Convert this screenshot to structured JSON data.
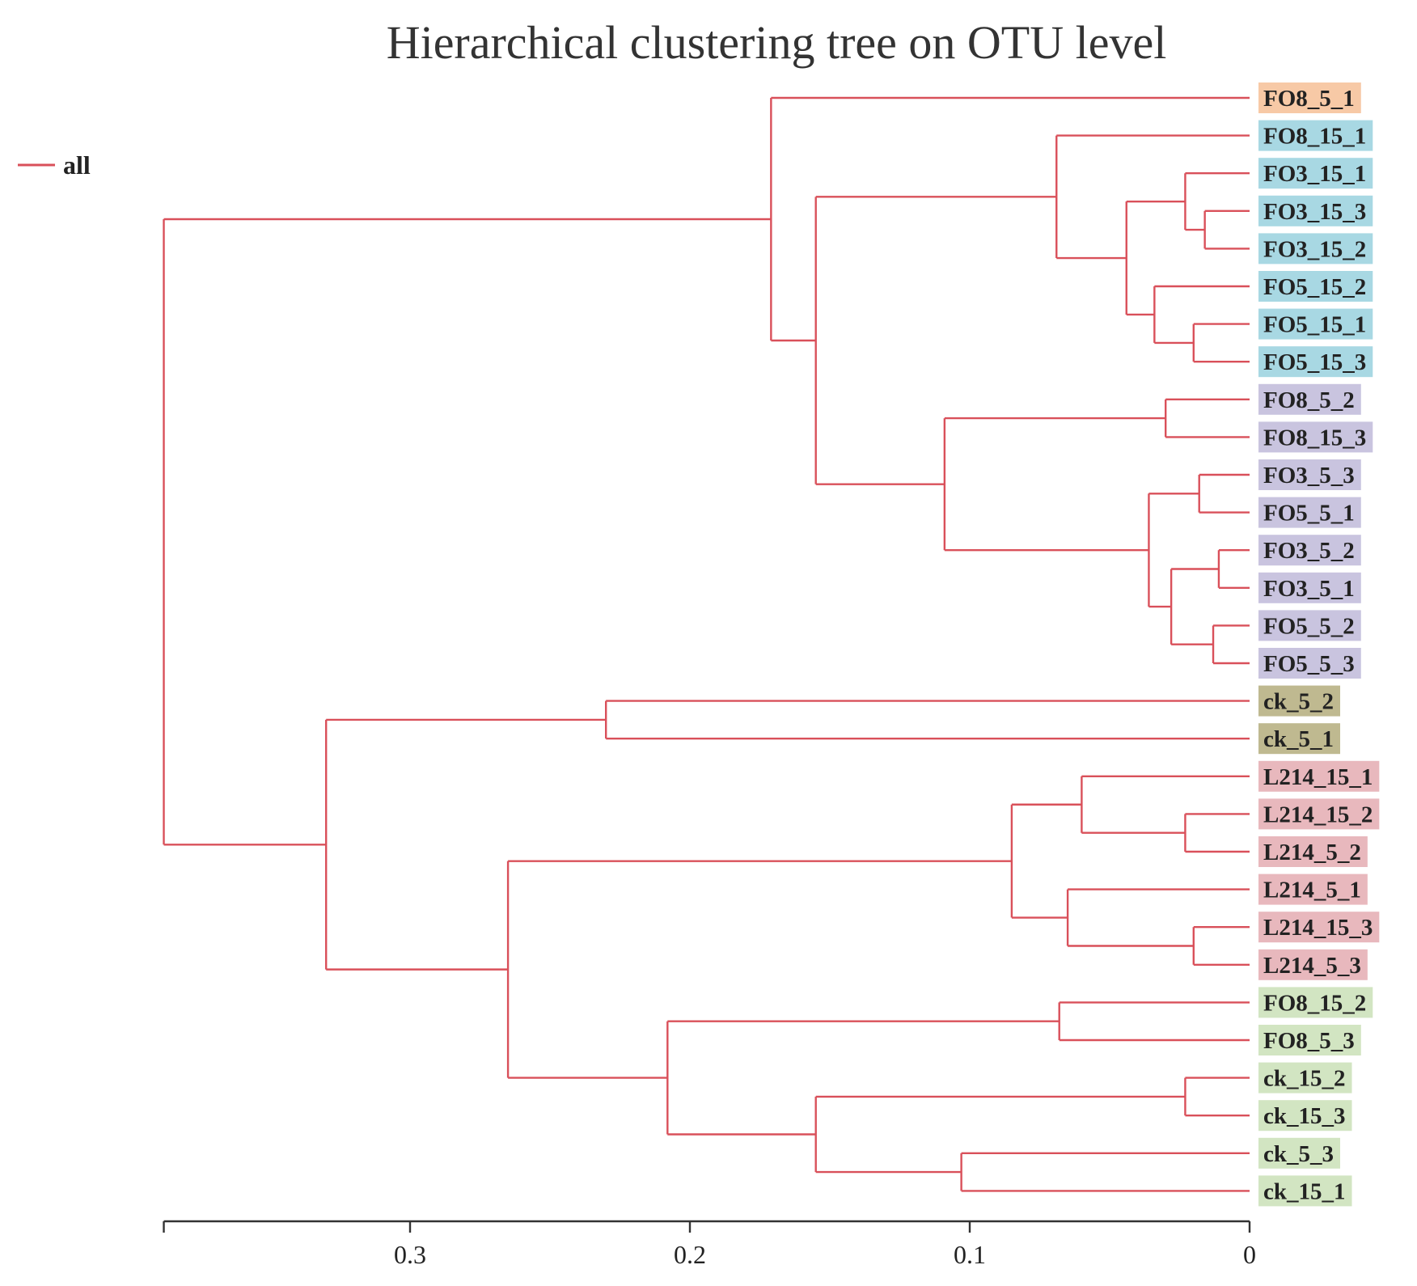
{
  "chart_data": {
    "type": "dendrogram",
    "title": "Hierarchical clustering tree on OTU level",
    "legend": {
      "label": "all",
      "color": "#d9505a",
      "placement": "top-left"
    },
    "xaxis": {
      "ticks": [
        0.3,
        0.2,
        0.1,
        0
      ],
      "tick_labels": [
        "0.3",
        "0.2",
        "0.1",
        "0"
      ],
      "range": [
        0.388,
        0
      ],
      "reversed": true
    },
    "leaves": [
      {
        "name": "FO8_5_1",
        "color": "#f7c9a6"
      },
      {
        "name": "FO8_15_1",
        "color": "#a8d8e3"
      },
      {
        "name": "FO3_15_1",
        "color": "#a8d8e3"
      },
      {
        "name": "FO3_15_3",
        "color": "#a8d8e3"
      },
      {
        "name": "FO3_15_2",
        "color": "#a8d8e3"
      },
      {
        "name": "FO5_15_2",
        "color": "#a8d8e3"
      },
      {
        "name": "FO5_15_1",
        "color": "#a8d8e3"
      },
      {
        "name": "FO5_15_3",
        "color": "#a8d8e3"
      },
      {
        "name": "FO8_5_2",
        "color": "#c9c4df"
      },
      {
        "name": "FO8_15_3",
        "color": "#c9c4df"
      },
      {
        "name": "FO3_5_3",
        "color": "#c9c4df"
      },
      {
        "name": "FO5_5_1",
        "color": "#c9c4df"
      },
      {
        "name": "FO3_5_2",
        "color": "#c9c4df"
      },
      {
        "name": "FO3_5_1",
        "color": "#c9c4df"
      },
      {
        "name": "FO5_5_2",
        "color": "#c9c4df"
      },
      {
        "name": "FO5_5_3",
        "color": "#c9c4df"
      },
      {
        "name": "ck_5_2",
        "color": "#bfb990"
      },
      {
        "name": "ck_5_1",
        "color": "#bfb990"
      },
      {
        "name": "L214_15_1",
        "color": "#e8b8bd"
      },
      {
        "name": "L214_15_2",
        "color": "#e8b8bd"
      },
      {
        "name": "L214_5_2",
        "color": "#e8b8bd"
      },
      {
        "name": "L214_5_1",
        "color": "#e8b8bd"
      },
      {
        "name": "L214_15_3",
        "color": "#e8b8bd"
      },
      {
        "name": "L214_5_3",
        "color": "#e8b8bd"
      },
      {
        "name": "FO8_15_2",
        "color": "#d2e5c2"
      },
      {
        "name": "FO8_5_3",
        "color": "#d2e5c2"
      },
      {
        "name": "ck_15_2",
        "color": "#d2e5c2"
      },
      {
        "name": "ck_15_3",
        "color": "#d2e5c2"
      },
      {
        "name": "ck_5_3",
        "color": "#d2e5c2"
      },
      {
        "name": "ck_15_1",
        "color": "#d2e5c2"
      }
    ],
    "merges": [
      {
        "a": "L3",
        "b": "L4",
        "height": 0.016
      },
      {
        "a": "L2",
        "b": "m0",
        "height": 0.023
      },
      {
        "a": "L6",
        "b": "L7",
        "height": 0.02
      },
      {
        "a": "L5",
        "b": "m2",
        "height": 0.034
      },
      {
        "a": "m1",
        "b": "m3",
        "height": 0.044
      },
      {
        "a": "L1",
        "b": "m4",
        "height": 0.069
      },
      {
        "a": "L8",
        "b": "L9",
        "height": 0.03
      },
      {
        "a": "L10",
        "b": "L11",
        "height": 0.018
      },
      {
        "a": "L12",
        "b": "L13",
        "height": 0.011
      },
      {
        "a": "L14",
        "b": "L15",
        "height": 0.013
      },
      {
        "a": "m8",
        "b": "m9",
        "height": 0.028
      },
      {
        "a": "m7",
        "b": "m10",
        "height": 0.036
      },
      {
        "a": "m6",
        "b": "m11",
        "height": 0.109
      },
      {
        "a": "m5",
        "b": "m12",
        "height": 0.155
      },
      {
        "a": "L0",
        "b": "m13",
        "height": 0.171
      },
      {
        "a": "L16",
        "b": "L17",
        "height": 0.23
      },
      {
        "a": "L19",
        "b": "L20",
        "height": 0.023
      },
      {
        "a": "L18",
        "b": "m16",
        "height": 0.06
      },
      {
        "a": "L22",
        "b": "L23",
        "height": 0.02
      },
      {
        "a": "L21",
        "b": "m18",
        "height": 0.065
      },
      {
        "a": "m17",
        "b": "m19",
        "height": 0.085
      },
      {
        "a": "L24",
        "b": "L25",
        "height": 0.068
      },
      {
        "a": "L26",
        "b": "L27",
        "height": 0.023
      },
      {
        "a": "L28",
        "b": "L29",
        "height": 0.103
      },
      {
        "a": "m22",
        "b": "m23",
        "height": 0.155
      },
      {
        "a": "m21",
        "b": "m24",
        "height": 0.208
      },
      {
        "a": "m20",
        "b": "m25",
        "height": 0.265
      },
      {
        "a": "m15",
        "b": "m26",
        "height": 0.33
      },
      {
        "a": "m14",
        "b": "m27",
        "height": 0.388
      }
    ]
  }
}
